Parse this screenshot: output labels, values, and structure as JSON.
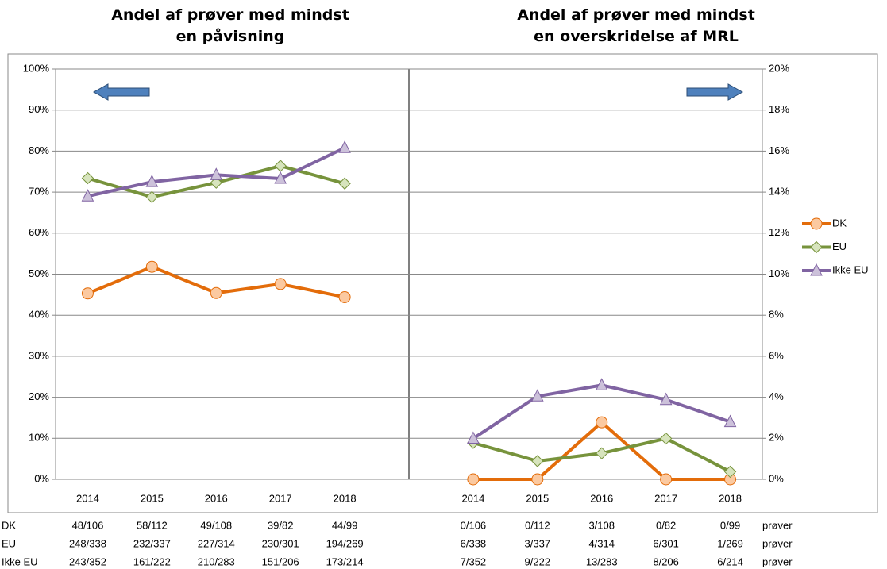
{
  "chart_data": [
    {
      "type": "line",
      "title": "Andel af prøver med mindst en påvisning",
      "axis_side": "left",
      "categories": [
        "2014",
        "2015",
        "2016",
        "2017",
        "2018"
      ],
      "series": [
        {
          "name": "DK",
          "color": "#e36c0a",
          "marker_color": "#fbc9a0",
          "marker": "circle",
          "values": [
            45.3,
            51.8,
            45.4,
            47.6,
            44.4
          ]
        },
        {
          "name": "EU",
          "color": "#77933c",
          "marker_color": "#d7e4bd",
          "marker": "diamond",
          "values": [
            73.4,
            68.8,
            72.3,
            76.4,
            72.1
          ]
        },
        {
          "name": "Ikke EU",
          "color": "#8064a2",
          "marker_color": "#ccc1da",
          "marker": "triangle",
          "values": [
            69.0,
            72.5,
            74.2,
            73.3,
            80.8
          ]
        }
      ],
      "ylim": [
        0,
        100
      ],
      "yticks": [
        {
          "value": 0,
          "label": "0%"
        },
        {
          "value": 10,
          "label": "10%"
        },
        {
          "value": 20,
          "label": "20%"
        },
        {
          "value": 30,
          "label": "30%"
        },
        {
          "value": 40,
          "label": "40%"
        },
        {
          "value": 50,
          "label": "50%"
        },
        {
          "value": 60,
          "label": "60%"
        },
        {
          "value": 70,
          "label": "70%"
        },
        {
          "value": 80,
          "label": "80%"
        },
        {
          "value": 90,
          "label": "90%"
        },
        {
          "value": 100,
          "label": "100%"
        }
      ],
      "grid": true
    },
    {
      "type": "line",
      "title": "Andel af prøver med mindst en overskridelse af MRL",
      "axis_side": "right",
      "categories": [
        "2014",
        "2015",
        "2016",
        "2017",
        "2018"
      ],
      "series": [
        {
          "name": "DK",
          "color": "#e36c0a",
          "marker_color": "#fbc9a0",
          "marker": "circle",
          "values": [
            0,
            0,
            2.78,
            0,
            0
          ]
        },
        {
          "name": "EU",
          "color": "#77933c",
          "marker_color": "#d7e4bd",
          "marker": "diamond",
          "values": [
            1.78,
            0.89,
            1.27,
            1.99,
            0.37
          ]
        },
        {
          "name": "Ikke EU",
          "color": "#8064a2",
          "marker_color": "#ccc1da",
          "marker": "triangle",
          "values": [
            1.99,
            4.05,
            4.59,
            3.88,
            2.8
          ]
        }
      ],
      "ylim": [
        0,
        20
      ],
      "yticks": [
        {
          "value": 0,
          "label": "0%"
        },
        {
          "value": 2,
          "label": "2%"
        },
        {
          "value": 4,
          "label": "4%"
        },
        {
          "value": 6,
          "label": "6%"
        },
        {
          "value": 8,
          "label": "8%"
        },
        {
          "value": 10,
          "label": "10%"
        },
        {
          "value": 12,
          "label": "12%"
        },
        {
          "value": 14,
          "label": "14%"
        },
        {
          "value": 16,
          "label": "16%"
        },
        {
          "value": 18,
          "label": "18%"
        },
        {
          "value": 20,
          "label": "20%"
        }
      ],
      "grid": true,
      "legend": "right"
    }
  ],
  "table": {
    "rows": [
      {
        "label": "DK",
        "cells": [
          "48/106",
          "58/112",
          "49/108",
          "39/82",
          "44/99",
          "0/106",
          "0/112",
          "3/108",
          "0/82",
          "0/99"
        ],
        "unit": "prøver"
      },
      {
        "label": "EU",
        "cells": [
          "248/338",
          "232/337",
          "227/314",
          "230/301",
          "194/269",
          "6/338",
          "3/337",
          "4/314",
          "6/301",
          "1/269"
        ],
        "unit": "prøver"
      },
      {
        "label": "Ikke EU",
        "cells": [
          "243/352",
          "161/222",
          "210/283",
          "151/206",
          "173/214",
          "7/352",
          "9/222",
          "13/283",
          "8/206",
          "6/214"
        ],
        "unit": "prøver"
      }
    ]
  }
}
